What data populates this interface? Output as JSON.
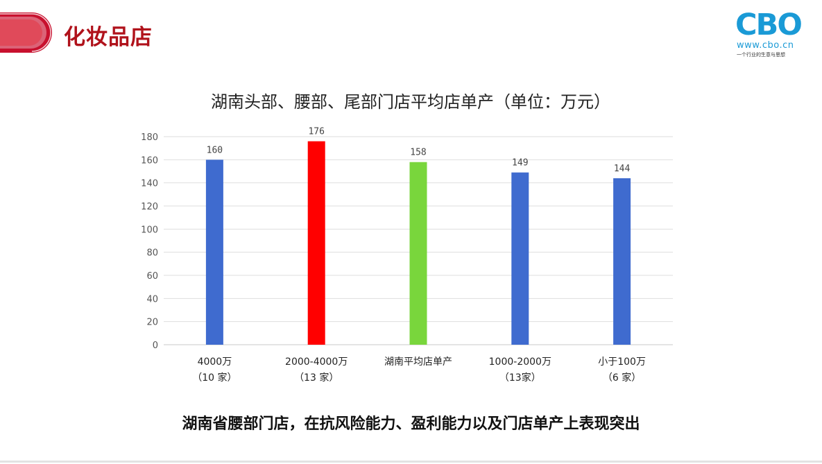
{
  "header": {
    "title": "化妆品店",
    "accent_color": "#c8102e"
  },
  "logo": {
    "wordmark": "CBO",
    "url": "www.cbo.cn",
    "tagline": "一个行业的生意与思想",
    "color": "#1a9ad6"
  },
  "chart_data": {
    "type": "bar",
    "title": "湖南头部、腰部、尾部门店平均店单产（单位：万元）",
    "categories": [
      [
        "4000万",
        "（10 家）"
      ],
      [
        "2000-4000万",
        "（13 家）"
      ],
      [
        "湖南平均店单产",
        ""
      ],
      [
        "1000-2000万",
        "（13家）"
      ],
      [
        "小于100万",
        "（6 家）"
      ]
    ],
    "values": [
      160,
      176,
      158,
      149,
      144
    ],
    "colors": [
      "#3f6bcf",
      "#ff0000",
      "#79d63c",
      "#3f6bcf",
      "#3f6bcf"
    ],
    "ylim": [
      0,
      180
    ],
    "yticks": [
      0,
      20,
      40,
      60,
      80,
      100,
      120,
      140,
      160,
      180
    ],
    "grid": true,
    "legend": "none"
  },
  "conclusion": "湖南省腰部门店，在抗风险能力、盈利能力以及门店单产上表现突出"
}
